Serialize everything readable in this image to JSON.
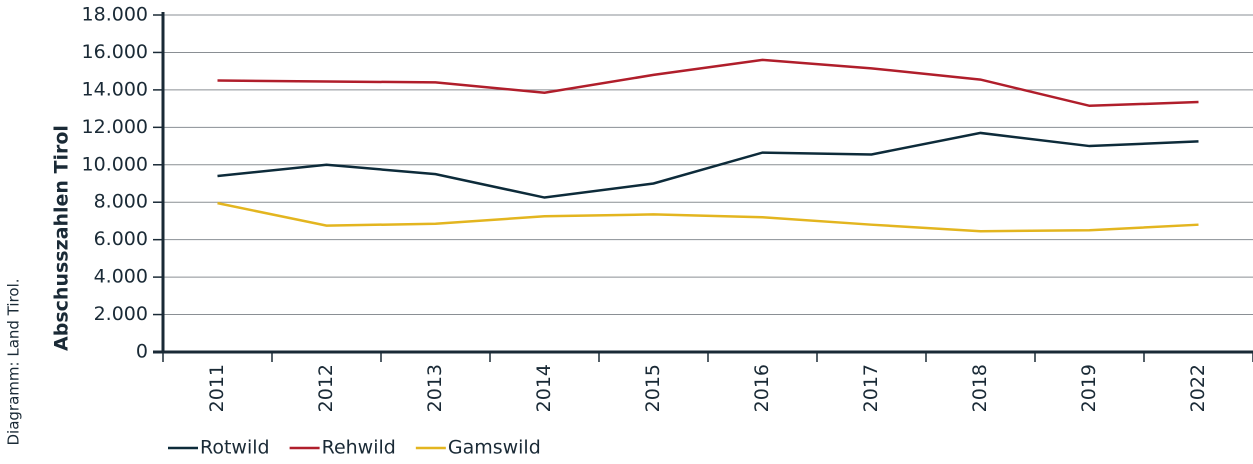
{
  "chart_data": {
    "type": "line",
    "y_label": "Abschusszahlen Tirol",
    "source": "Diagramm: Land Tirol.",
    "categories": [
      "2011",
      "2012",
      "2013",
      "2014",
      "2015",
      "2016",
      "2017",
      "2018",
      "2019",
      "2022"
    ],
    "series": [
      {
        "name": "Rotwild",
        "color": "#0d2b3a",
        "values": [
          9400,
          10000,
          9500,
          8250,
          9000,
          10650,
          10550,
          11700,
          11000,
          11250
        ]
      },
      {
        "name": "Rehwild",
        "color": "#b01e2b",
        "values": [
          14500,
          14450,
          14400,
          13850,
          14800,
          15600,
          15150,
          14550,
          13150,
          13350
        ]
      },
      {
        "name": "Gamswild",
        "color": "#e3b51f",
        "values": [
          7950,
          6750,
          6850,
          7250,
          7350,
          7200,
          6800,
          6450,
          6500,
          6800
        ]
      }
    ],
    "ylim": [
      0,
      18000
    ],
    "yticks": [
      0,
      {
        "value": 2000,
        "label": "2.000"
      },
      {
        "value": 4000,
        "label": "4.000"
      },
      {
        "value": 6000,
        "label": "6.000"
      },
      {
        "value": 8000,
        "label": "8.000"
      },
      {
        "value": 10000,
        "label": "10.000"
      },
      {
        "value": 12000,
        "label": "12.000"
      },
      {
        "value": 14000,
        "label": "14.000"
      },
      {
        "value": 16000,
        "label": "16.000"
      },
      {
        "value": 18000,
        "label": "18.000"
      }
    ],
    "grid": true,
    "legend": "bottom-left"
  }
}
